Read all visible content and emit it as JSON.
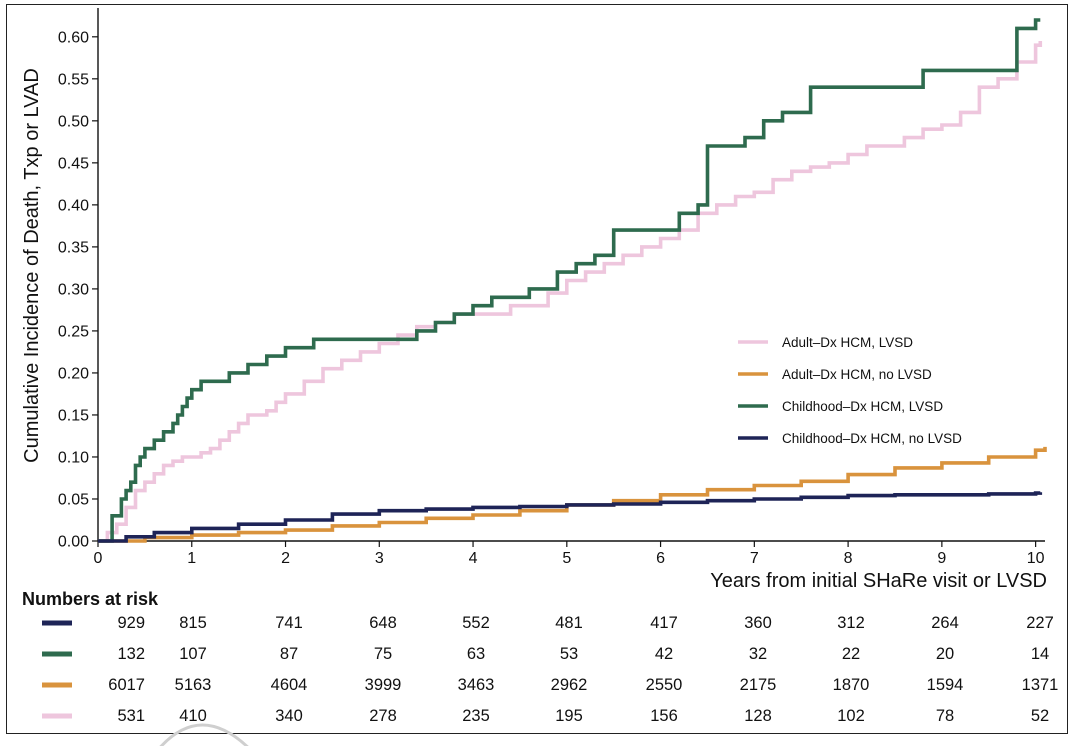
{
  "chart_data": {
    "type": "line",
    "title": "",
    "xlabel": "Years from initial SHaRe visit or LVSD",
    "ylabel": "Cumulative Incidence of Death, Txp or LVAD",
    "xlim": [
      0,
      10.1
    ],
    "ylim": [
      0,
      0.62
    ],
    "x_ticks": [
      "0",
      "1",
      "2",
      "3",
      "4",
      "5",
      "6",
      "7",
      "8",
      "9",
      "10"
    ],
    "y_ticks": [
      "0.00",
      "0.05",
      "0.10",
      "0.15",
      "0.20",
      "0.25",
      "0.30",
      "0.35",
      "0.40",
      "0.45",
      "0.50",
      "0.55",
      "0.60"
    ],
    "grid": false,
    "legend_position": "center-right",
    "step": true,
    "series": [
      {
        "name": "Adult–Dx HCM, LVSD",
        "color": "#eec6dd",
        "x": [
          0,
          0.1,
          0.2,
          0.3,
          0.4,
          0.5,
          0.6,
          0.7,
          0.8,
          0.9,
          1.0,
          1.1,
          1.2,
          1.3,
          1.4,
          1.5,
          1.6,
          1.7,
          1.8,
          1.9,
          2.0,
          2.2,
          2.4,
          2.6,
          2.8,
          3.0,
          3.2,
          3.4,
          3.6,
          3.8,
          4.0,
          4.4,
          4.8,
          5.0,
          5.2,
          5.4,
          5.6,
          5.8,
          6.0,
          6.2,
          6.4,
          6.6,
          6.8,
          7.0,
          7.2,
          7.4,
          7.6,
          7.8,
          8.0,
          8.2,
          8.4,
          8.6,
          8.8,
          9.0,
          9.2,
          9.4,
          9.6,
          9.8,
          10.0,
          10.05
        ],
        "y": [
          0,
          0.01,
          0.02,
          0.04,
          0.06,
          0.07,
          0.08,
          0.09,
          0.095,
          0.1,
          0.1,
          0.105,
          0.11,
          0.12,
          0.13,
          0.14,
          0.15,
          0.15,
          0.155,
          0.165,
          0.175,
          0.19,
          0.205,
          0.215,
          0.225,
          0.235,
          0.245,
          0.255,
          0.26,
          0.27,
          0.27,
          0.28,
          0.295,
          0.31,
          0.32,
          0.33,
          0.34,
          0.35,
          0.36,
          0.37,
          0.39,
          0.4,
          0.41,
          0.415,
          0.43,
          0.44,
          0.445,
          0.45,
          0.46,
          0.47,
          0.47,
          0.48,
          0.49,
          0.495,
          0.51,
          0.54,
          0.55,
          0.57,
          0.59,
          0.595
        ]
      },
      {
        "name": "Adult–Dx HCM, no LVSD",
        "color": "#d9933d",
        "x": [
          0,
          0.5,
          1.0,
          1.5,
          2.0,
          2.5,
          3.0,
          3.5,
          4.0,
          4.5,
          5.0,
          5.5,
          6.0,
          6.5,
          7.0,
          7.5,
          8.0,
          8.5,
          9.0,
          9.5,
          10.0,
          10.1
        ],
        "y": [
          0,
          0.004,
          0.007,
          0.01,
          0.013,
          0.018,
          0.022,
          0.027,
          0.031,
          0.036,
          0.043,
          0.048,
          0.055,
          0.061,
          0.066,
          0.071,
          0.079,
          0.087,
          0.093,
          0.1,
          0.108,
          0.112
        ]
      },
      {
        "name": "Childhood–Dx HCM, LVSD",
        "color": "#2e6b4e",
        "x": [
          0,
          0.15,
          0.25,
          0.3,
          0.35,
          0.4,
          0.45,
          0.5,
          0.55,
          0.6,
          0.7,
          0.8,
          0.85,
          0.9,
          0.95,
          1.0,
          1.1,
          1.2,
          1.4,
          1.6,
          1.8,
          2.0,
          2.3,
          2.6,
          3.4,
          3.6,
          3.8,
          4.0,
          4.2,
          4.6,
          4.9,
          5.1,
          5.3,
          5.5,
          5.8,
          6.2,
          6.4,
          6.5,
          6.6,
          6.8,
          6.9,
          7.1,
          7.3,
          7.6,
          7.9,
          8.1,
          8.3,
          8.8,
          9.0,
          9.3,
          9.5,
          9.6,
          9.8,
          10.0,
          10.05
        ],
        "y": [
          0,
          0.03,
          0.05,
          0.06,
          0.07,
          0.09,
          0.1,
          0.11,
          0.11,
          0.12,
          0.13,
          0.14,
          0.15,
          0.16,
          0.17,
          0.18,
          0.19,
          0.19,
          0.2,
          0.21,
          0.22,
          0.23,
          0.24,
          0.24,
          0.25,
          0.26,
          0.27,
          0.28,
          0.29,
          0.3,
          0.32,
          0.33,
          0.34,
          0.37,
          0.37,
          0.39,
          0.4,
          0.47,
          0.47,
          0.47,
          0.48,
          0.5,
          0.51,
          0.54,
          0.54,
          0.54,
          0.54,
          0.56,
          0.56,
          0.56,
          0.56,
          0.56,
          0.61,
          0.62,
          0.62
        ]
      },
      {
        "name": "Childhood–Dx HCM, no LVSD",
        "color": "#1e2457",
        "x": [
          0,
          0.3,
          0.6,
          1.0,
          1.5,
          2.0,
          2.5,
          3.0,
          3.5,
          4.0,
          4.5,
          5.0,
          5.5,
          6.0,
          6.5,
          7.0,
          7.5,
          8.0,
          8.5,
          9.0,
          9.5,
          10.0,
          10.05
        ],
        "y": [
          0,
          0.005,
          0.01,
          0.015,
          0.02,
          0.025,
          0.032,
          0.036,
          0.038,
          0.04,
          0.041,
          0.043,
          0.044,
          0.046,
          0.048,
          0.05,
          0.052,
          0.054,
          0.055,
          0.055,
          0.056,
          0.057,
          0.058
        ]
      }
    ],
    "numbers_at_risk": {
      "title": "Numbers at risk",
      "rows": [
        {
          "color": "#1e2457",
          "values": [
            "929",
            "815",
            "741",
            "648",
            "552",
            "481",
            "417",
            "360",
            "312",
            "264",
            "227"
          ]
        },
        {
          "color": "#2e6b4e",
          "values": [
            "132",
            "107",
            "87",
            "75",
            "63",
            "53",
            "42",
            "32",
            "22",
            "20",
            "14"
          ]
        },
        {
          "color": "#d9933d",
          "values": [
            "6017",
            "5163",
            "4604",
            "3999",
            "3463",
            "2962",
            "2550",
            "2175",
            "1870",
            "1594",
            "1371"
          ]
        },
        {
          "color": "#eec6dd",
          "values": [
            "531",
            "410",
            "340",
            "278",
            "235",
            "195",
            "156",
            "128",
            "102",
            "78",
            "52"
          ]
        }
      ]
    }
  }
}
